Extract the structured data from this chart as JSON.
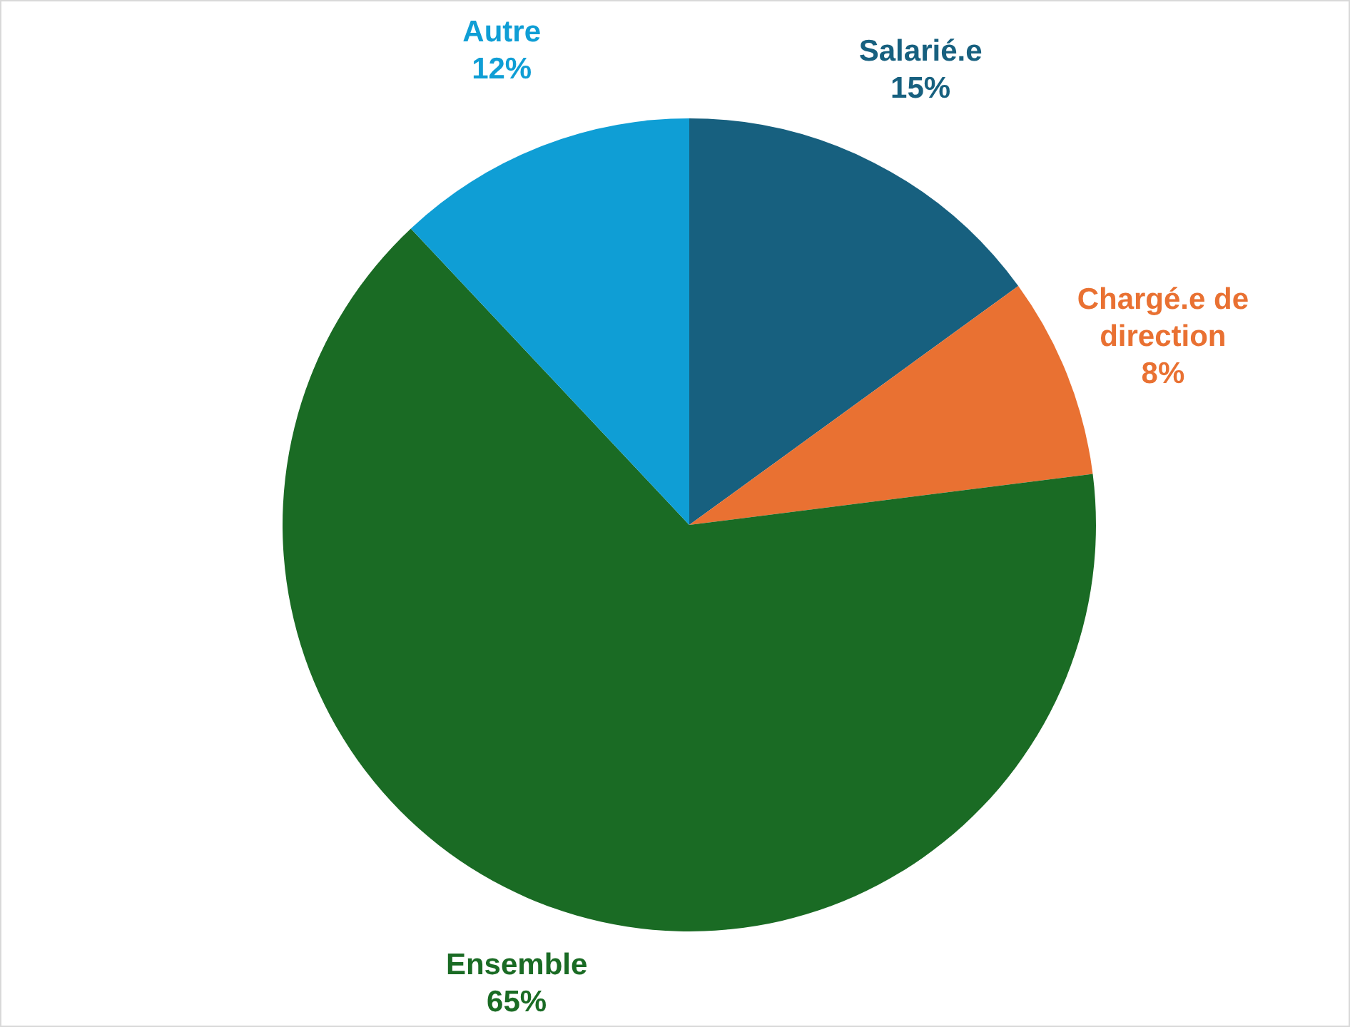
{
  "chart_data": {
    "type": "pie",
    "categories": [
      "Salarié.e",
      "Chargé.e de direction",
      "Ensemble",
      "Autre"
    ],
    "values": [
      15,
      8,
      65,
      12
    ],
    "colors": [
      "#17607f",
      "#e97132",
      "#1a6b24",
      "#0f9ed5"
    ],
    "value_labels": [
      "15%",
      "8%",
      "65%",
      "12%"
    ],
    "legend": false
  }
}
